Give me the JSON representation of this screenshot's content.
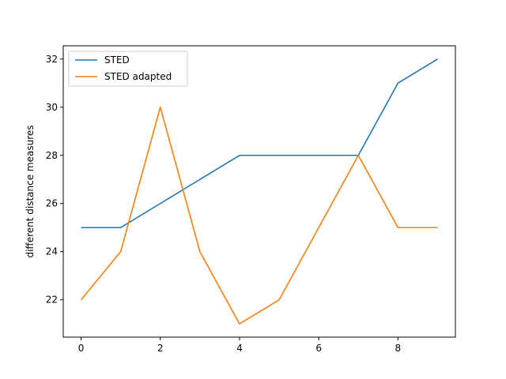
{
  "chart_data": {
    "type": "line",
    "title": "",
    "xlabel": "",
    "ylabel": "different distance measures",
    "x": [
      0,
      1,
      2,
      3,
      4,
      5,
      6,
      7,
      8,
      9
    ],
    "xlim": [
      -0.45,
      9.45
    ],
    "ylim": [
      20.45,
      32.55
    ],
    "xticks": [
      0,
      2,
      4,
      6,
      8
    ],
    "yticks": [
      22,
      24,
      26,
      28,
      30,
      32
    ],
    "grid": false,
    "legend_position": "upper-left",
    "series": [
      {
        "name": "STED",
        "color": "#1f77b4",
        "values": [
          25,
          25,
          26,
          27,
          28,
          28,
          28,
          28,
          31,
          32
        ]
      },
      {
        "name": "STED adapted",
        "color": "#ff7f0e",
        "values": [
          22,
          24,
          30,
          24,
          21,
          22,
          25,
          28,
          25,
          25
        ]
      }
    ]
  }
}
